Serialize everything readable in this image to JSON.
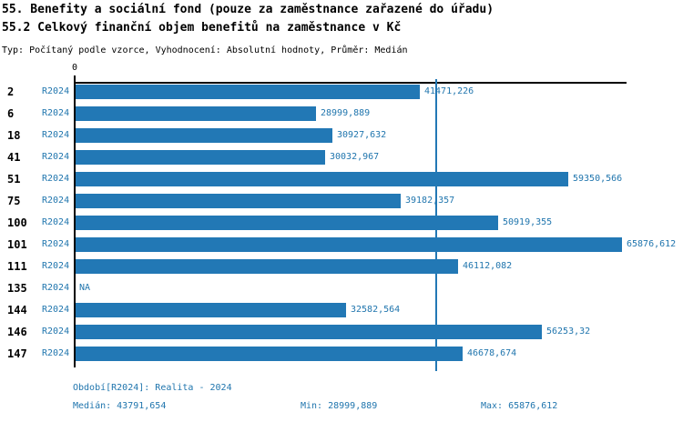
{
  "title": "55. Benefity a sociální fond (pouze za zaměstnance zařazené do úřadu)",
  "subtitle": "55.2 Celkový finanční objem benefitů na zaměstnance v Kč",
  "meta_line": "Typ: Počítaný podle vzorce, Vyhodnocení: Absolutní hodnoty, Průměr: Medián",
  "chart_data": {
    "type": "bar",
    "orientation": "horizontal",
    "title": "55.2 Celkový finanční objem benefitů na zaměstnance v Kč",
    "x_axis": {
      "zero_label": "0",
      "min": 0,
      "max": 65876.612,
      "grid": false
    },
    "series_label": "R2024",
    "categories": [
      "2",
      "6",
      "18",
      "41",
      "51",
      "75",
      "100",
      "101",
      "111",
      "135",
      "144",
      "146",
      "147"
    ],
    "values": [
      41471.226,
      28999.889,
      30927.632,
      30032.967,
      59350.566,
      39182.357,
      50919.355,
      65876.612,
      46112.082,
      null,
      32582.564,
      56253.32,
      46678.674
    ],
    "value_labels": [
      "41471,226",
      "28999,889",
      "30927,632",
      "30032,967",
      "59350,566",
      "39182,357",
      "50919,355",
      "65876,612",
      "46112,082",
      "NA",
      "32582,564",
      "56253,32",
      "46678,674"
    ],
    "na_label": "NA",
    "median": {
      "value": 43791.654,
      "label": "43791,654"
    },
    "legend_position": "none",
    "colors": {
      "bar": "#2278b5",
      "median_line": "#2278b5",
      "blue_text": "#2176ae",
      "axis": "#000000"
    }
  },
  "footer": {
    "period": "Období[R2024]: Realita - 2024",
    "median": "Medián: 43791,654",
    "min": "Min: 28999,889",
    "max": "Max: 65876,612"
  }
}
